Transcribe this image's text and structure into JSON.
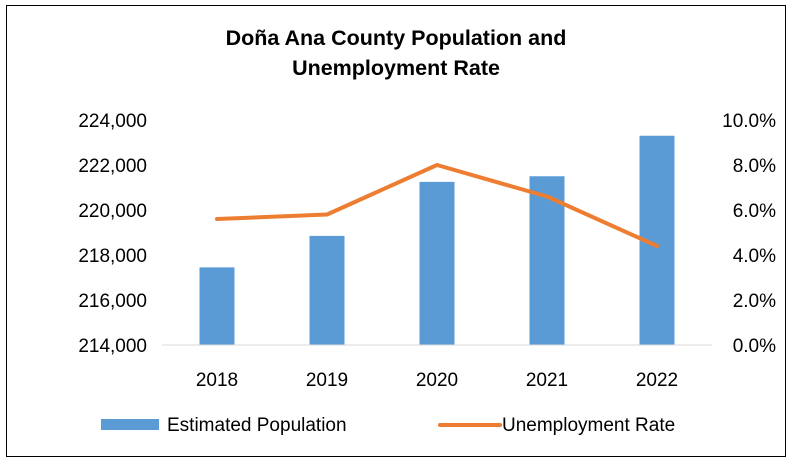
{
  "chart_data": {
    "type": "bar-line-combo",
    "title_lines": [
      "Doña Ana County Population and",
      "Unemployment Rate"
    ],
    "categories": [
      "2018",
      "2019",
      "2020",
      "2021",
      "2022"
    ],
    "series": [
      {
        "name": "Estimated Population",
        "type": "bar",
        "axis": "left",
        "color": "#5B9BD5",
        "values": [
          217450,
          218850,
          221250,
          221500,
          223300
        ]
      },
      {
        "name": "Unemployment Rate",
        "type": "line",
        "axis": "right",
        "color": "#ED7D31",
        "values": [
          5.6,
          5.8,
          8.0,
          6.6,
          4.4
        ]
      }
    ],
    "y_left": {
      "min": 214000,
      "max": 224000,
      "ticks": [
        "214,000",
        "216,000",
        "218,000",
        "220,000",
        "222,000",
        "224,000"
      ],
      "tick_values": [
        214000,
        216000,
        218000,
        220000,
        222000,
        224000
      ]
    },
    "y_right": {
      "min": 0,
      "max": 10,
      "ticks": [
        "0.0%",
        "2.0%",
        "4.0%",
        "6.0%",
        "8.0%",
        "10.0%"
      ],
      "tick_values": [
        0,
        2,
        4,
        6,
        8,
        10
      ]
    },
    "legend": {
      "position": "bottom",
      "items": [
        "Estimated Population",
        "Unemployment Rate"
      ]
    },
    "grid": false
  }
}
